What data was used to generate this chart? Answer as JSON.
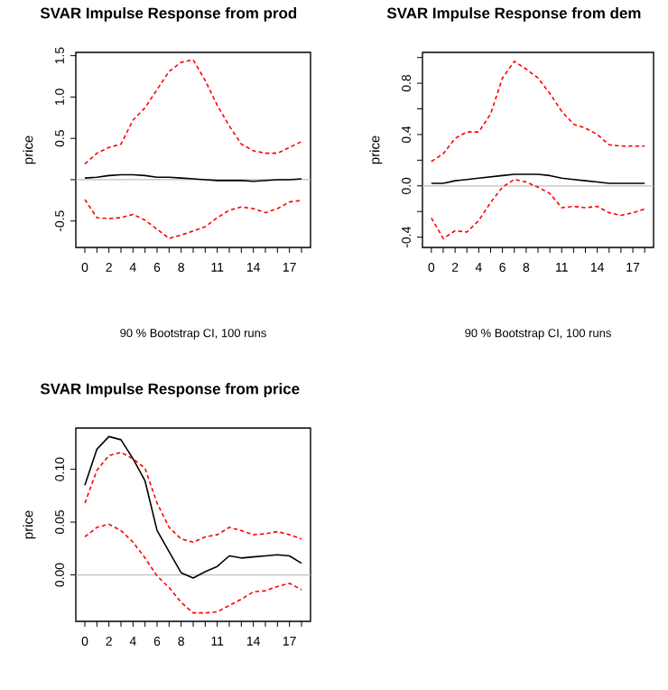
{
  "chart_data": [
    {
      "type": "line",
      "title": "SVAR Impulse Response from prod",
      "ylabel": "price",
      "annotations": [
        "90 % Bootstrap CI,  100 runs"
      ],
      "x": [
        0,
        1,
        2,
        3,
        4,
        5,
        6,
        7,
        8,
        9,
        10,
        11,
        12,
        13,
        14,
        15,
        16,
        17,
        18
      ],
      "xlim": [
        -0.75,
        18.75
      ],
      "xticks": [
        {
          "value": 0,
          "label": "0"
        },
        {
          "value": 1,
          "label": null
        },
        {
          "value": 2,
          "label": "2"
        },
        {
          "value": 3,
          "label": null
        },
        {
          "value": 4,
          "label": "4"
        },
        {
          "value": 5,
          "label": null
        },
        {
          "value": 6,
          "label": "6"
        },
        {
          "value": 7,
          "label": null
        },
        {
          "value": 8,
          "label": "8"
        },
        {
          "value": 9,
          "label": null
        },
        {
          "value": 10,
          "label": null
        },
        {
          "value": 11,
          "label": "11"
        },
        {
          "value": 12,
          "label": null
        },
        {
          "value": 13,
          "label": null
        },
        {
          "value": 14,
          "label": "14"
        },
        {
          "value": 15,
          "label": null
        },
        {
          "value": 16,
          "label": null
        },
        {
          "value": 17,
          "label": "17"
        },
        {
          "value": 18,
          "label": null
        }
      ],
      "ylim": [
        -0.82,
        1.54
      ],
      "yticks": [
        {
          "value": -0.5,
          "label": "-0.5"
        },
        {
          "value": 0,
          "label": null
        },
        {
          "value": 0.5,
          "label": "0.5"
        },
        {
          "value": 1.0,
          "label": "1.0"
        },
        {
          "value": 1.5,
          "label": "1.5"
        }
      ],
      "series": [
        {
          "color": "#000000",
          "line_style": "solid",
          "values": [
            0.02,
            0.03,
            0.05,
            0.06,
            0.06,
            0.05,
            0.03,
            0.03,
            0.02,
            0.01,
            0.0,
            -0.01,
            -0.01,
            -0.01,
            -0.02,
            -0.01,
            0.0,
            0.0,
            0.01
          ]
        },
        {
          "color": "#ff0000",
          "line_style": "dashed",
          "values": [
            0.19,
            0.32,
            0.39,
            0.43,
            0.72,
            0.87,
            1.09,
            1.31,
            1.42,
            1.45,
            1.2,
            0.9,
            0.65,
            0.43,
            0.35,
            0.32,
            0.32,
            0.39,
            0.46
          ]
        },
        {
          "color": "#ff0000",
          "line_style": "dashed",
          "values": [
            -0.24,
            -0.46,
            -0.47,
            -0.46,
            -0.42,
            -0.49,
            -0.6,
            -0.71,
            -0.67,
            -0.62,
            -0.57,
            -0.46,
            -0.37,
            -0.33,
            -0.35,
            -0.4,
            -0.35,
            -0.27,
            -0.25
          ]
        }
      ],
      "ref_lines": [
        {
          "axis": "y",
          "value": 0,
          "color": "#bebebe"
        }
      ]
    },
    {
      "type": "line",
      "title": "SVAR Impulse Response from dem",
      "ylabel": "price",
      "annotations": [
        "90 % Bootstrap CI,  100 runs"
      ],
      "x": [
        0,
        1,
        2,
        3,
        4,
        5,
        6,
        7,
        8,
        9,
        10,
        11,
        12,
        13,
        14,
        15,
        16,
        17,
        18
      ],
      "xlim": [
        -0.75,
        18.75
      ],
      "xticks": [
        {
          "value": 0,
          "label": "0"
        },
        {
          "value": 1,
          "label": null
        },
        {
          "value": 2,
          "label": "2"
        },
        {
          "value": 3,
          "label": null
        },
        {
          "value": 4,
          "label": "4"
        },
        {
          "value": 5,
          "label": null
        },
        {
          "value": 6,
          "label": "6"
        },
        {
          "value": 7,
          "label": null
        },
        {
          "value": 8,
          "label": "8"
        },
        {
          "value": 9,
          "label": null
        },
        {
          "value": 10,
          "label": null
        },
        {
          "value": 11,
          "label": "11"
        },
        {
          "value": 12,
          "label": null
        },
        {
          "value": 13,
          "label": null
        },
        {
          "value": 14,
          "label": "14"
        },
        {
          "value": 15,
          "label": null
        },
        {
          "value": 16,
          "label": null
        },
        {
          "value": 17,
          "label": "17"
        },
        {
          "value": 18,
          "label": null
        }
      ],
      "ylim": [
        -0.48,
        1.04
      ],
      "yticks": [
        {
          "value": -0.4,
          "label": "-0.4"
        },
        {
          "value": -0.2,
          "label": null
        },
        {
          "value": 0.0,
          "label": "0.0"
        },
        {
          "value": 0.2,
          "label": null
        },
        {
          "value": 0.4,
          "label": "0.4"
        },
        {
          "value": 0.6,
          "label": null
        },
        {
          "value": 0.8,
          "label": "0.8"
        },
        {
          "value": 1.0,
          "label": null
        }
      ],
      "series": [
        {
          "color": "#000000",
          "line_style": "solid",
          "values": [
            0.02,
            0.02,
            0.04,
            0.05,
            0.06,
            0.07,
            0.08,
            0.09,
            0.09,
            0.09,
            0.08,
            0.06,
            0.05,
            0.04,
            0.03,
            0.02,
            0.02,
            0.02,
            0.02
          ]
        },
        {
          "color": "#ff0000",
          "line_style": "dashed",
          "values": [
            0.19,
            0.25,
            0.37,
            0.42,
            0.42,
            0.56,
            0.84,
            0.97,
            0.91,
            0.84,
            0.72,
            0.58,
            0.48,
            0.45,
            0.4,
            0.32,
            0.31,
            0.31,
            0.31
          ]
        },
        {
          "color": "#ff0000",
          "line_style": "dashed",
          "values": [
            -0.25,
            -0.41,
            -0.35,
            -0.36,
            -0.27,
            -0.13,
            -0.01,
            0.05,
            0.03,
            -0.01,
            -0.06,
            -0.17,
            -0.16,
            -0.17,
            -0.16,
            -0.21,
            -0.23,
            -0.21,
            -0.18
          ]
        }
      ],
      "ref_lines": [
        {
          "axis": "y",
          "value": 0,
          "color": "#bebebe"
        }
      ]
    },
    {
      "type": "line",
      "title": "SVAR Impulse Response from price",
      "ylabel": "price",
      "x": [
        0,
        1,
        2,
        3,
        4,
        5,
        6,
        7,
        8,
        9,
        10,
        11,
        12,
        13,
        14,
        15,
        16,
        17,
        18
      ],
      "xlim": [
        -0.75,
        18.75
      ],
      "xticks": [
        {
          "value": 0,
          "label": "0"
        },
        {
          "value": 1,
          "label": null
        },
        {
          "value": 2,
          "label": "2"
        },
        {
          "value": 3,
          "label": null
        },
        {
          "value": 4,
          "label": "4"
        },
        {
          "value": 5,
          "label": null
        },
        {
          "value": 6,
          "label": "6"
        },
        {
          "value": 7,
          "label": null
        },
        {
          "value": 8,
          "label": "8"
        },
        {
          "value": 9,
          "label": null
        },
        {
          "value": 10,
          "label": null
        },
        {
          "value": 11,
          "label": "11"
        },
        {
          "value": 12,
          "label": null
        },
        {
          "value": 13,
          "label": null
        },
        {
          "value": 14,
          "label": "14"
        },
        {
          "value": 15,
          "label": null
        },
        {
          "value": 16,
          "label": null
        },
        {
          "value": 17,
          "label": "17"
        },
        {
          "value": 18,
          "label": null
        }
      ],
      "ylim": [
        -0.044,
        0.139
      ],
      "yticks": [
        {
          "value": 0.0,
          "label": "0.00"
        },
        {
          "value": 0.05,
          "label": "0.05"
        },
        {
          "value": 0.1,
          "label": "0.10"
        }
      ],
      "series": [
        {
          "color": "#000000",
          "line_style": "solid",
          "values": [
            0.085,
            0.119,
            0.131,
            0.128,
            0.11,
            0.089,
            0.042,
            0.022,
            0.002,
            -0.003,
            0.003,
            0.008,
            0.018,
            0.016,
            0.017,
            0.018,
            0.019,
            0.018,
            0.011
          ]
        },
        {
          "color": "#ff0000",
          "line_style": "dashed",
          "values": [
            0.068,
            0.099,
            0.113,
            0.116,
            0.11,
            0.101,
            0.068,
            0.045,
            0.034,
            0.031,
            0.036,
            0.038,
            0.045,
            0.042,
            0.038,
            0.039,
            0.041,
            0.038,
            0.034
          ]
        },
        {
          "color": "#ff0000",
          "line_style": "dashed",
          "values": [
            0.036,
            0.045,
            0.048,
            0.042,
            0.031,
            0.016,
            -0.001,
            -0.012,
            -0.026,
            -0.036,
            -0.036,
            -0.035,
            -0.029,
            -0.023,
            -0.016,
            -0.015,
            -0.011,
            -0.008,
            -0.014
          ]
        }
      ],
      "ref_lines": [
        {
          "axis": "y",
          "value": 0,
          "color": "#bebebe"
        }
      ]
    }
  ]
}
